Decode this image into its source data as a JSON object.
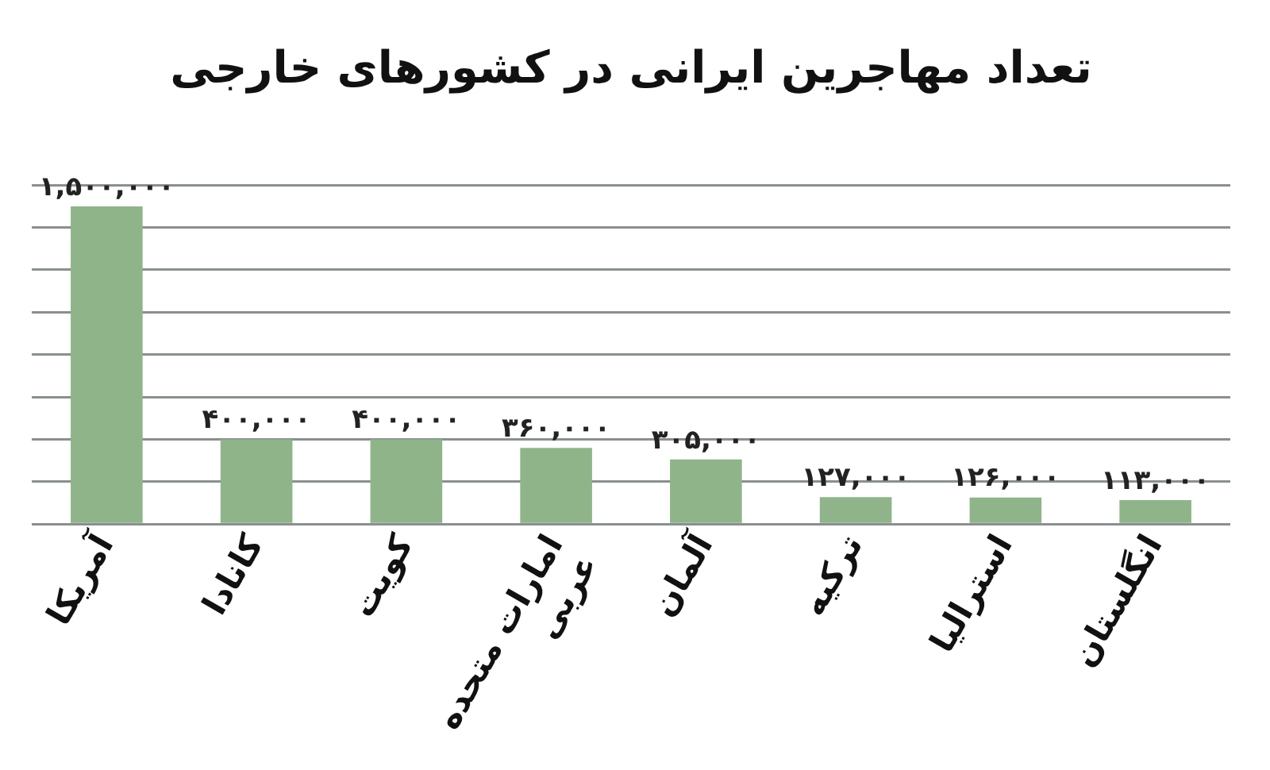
{
  "chart_data": {
    "type": "bar",
    "title": "تعداد مهاجرین ایرانی در کشورهای خارجی",
    "categories": [
      "آمریکا",
      "کانادا",
      "کویت",
      "امارات متحده عربی",
      "آلمان",
      "ترکیه",
      "استرالیا",
      "انگلستان"
    ],
    "values": [
      1500000,
      400000,
      400000,
      360000,
      305000,
      127000,
      126000,
      113000
    ],
    "value_labels": [
      "۱,۵۰۰,۰۰۰",
      "۴۰۰,۰۰۰",
      "۴۰۰,۰۰۰",
      "۳۶۰,۰۰۰",
      "۳۰۵,۰۰۰",
      "۱۲۷,۰۰۰",
      "۱۲۶,۰۰۰",
      "۱۱۳,۰۰۰"
    ],
    "color": "#8fb48a",
    "ylim": [
      0,
      1600000
    ],
    "yticks": [
      {
        "value": 0,
        "label": null
      },
      {
        "value": 200000,
        "label": null
      },
      {
        "value": 400000,
        "label": null
      },
      {
        "value": 600000,
        "label": null
      },
      {
        "value": 800000,
        "label": null
      },
      {
        "value": 1000000,
        "label": null
      },
      {
        "value": 1200000,
        "label": null
      },
      {
        "value": 1400000,
        "label": null
      },
      {
        "value": 1600000,
        "label": null
      }
    ],
    "tick_labels": "x",
    "grid": "y",
    "legend": false
  }
}
